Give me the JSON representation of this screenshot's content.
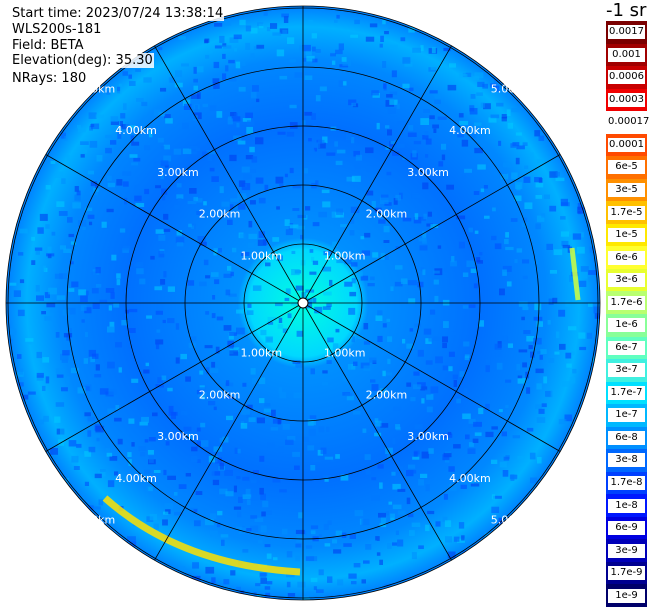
{
  "header": {
    "start_time": "Start time: 2023/07/24 13:38:14",
    "instrument": "WLS200s-181",
    "field": "Field: BETA",
    "elevation": "Elevation(deg): 35.30",
    "nrays": "NRays: 180"
  },
  "units": "-1 sr",
  "range_ring_labels": [
    "1.00km",
    "2.00km",
    "3.00km",
    "4.00km",
    "5.00km"
  ],
  "colorbar": {
    "labels": [
      "0.0017",
      "0.001",
      "0.0006",
      "0.0003",
      "0.00017",
      "0.0001",
      "6e-5",
      "3e-5",
      "1.7e-5",
      "1e-5",
      "6e-6",
      "3e-6",
      "1.7e-6",
      "1e-6",
      "6e-7",
      "3e-7",
      "1.7e-7",
      "1e-7",
      "6e-8",
      "3e-8",
      "1.7e-8",
      "1e-8",
      "6e-9",
      "3e-9",
      "1.7e-9",
      "1e-9"
    ],
    "colors": [
      "#7a0000",
      "#a00000",
      "#c80000",
      "#f00000",
      "#ffffff",
      "#ff4a00",
      "#ff7000",
      "#ff9000",
      "#ffc000",
      "#ffe800",
      "#ffff30",
      "#e8ff30",
      "#b8ff70",
      "#88ff98",
      "#60ffc0",
      "#40f0e0",
      "#00e0ff",
      "#00b8ff",
      "#0090ff",
      "#0068ff",
      "#0040ff",
      "#0018ff",
      "#0000e0",
      "#0000b8",
      "#000090",
      "#00006a"
    ]
  },
  "colors": {
    "ring": "#000000",
    "background": "#ffffff"
  }
}
